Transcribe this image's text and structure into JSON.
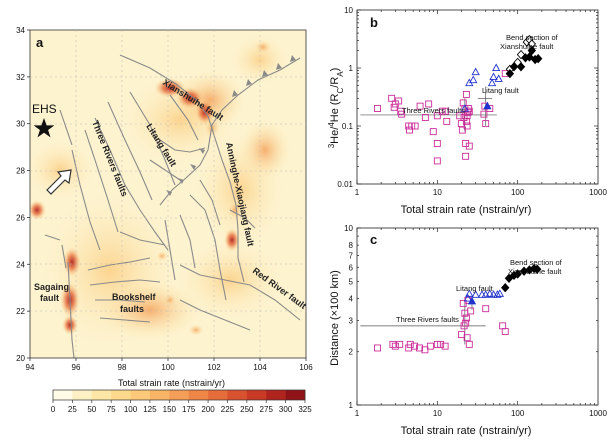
{
  "panel_a": {
    "label": "a",
    "xlabel": "Total strain rate (nstrain/yr)",
    "xticks": [
      "94",
      "96",
      "98",
      "100",
      "102",
      "104",
      "106"
    ],
    "yticks": [
      "20",
      "22",
      "24",
      "26",
      "28",
      "30",
      "32",
      "34"
    ],
    "xlim": [
      94,
      106
    ],
    "ylim": [
      20,
      34
    ],
    "ehs_label": "EHS",
    "colorbar_ticks": [
      "0",
      "25",
      "50",
      "75",
      "100",
      "125",
      "150",
      "175",
      "200",
      "225",
      "250",
      "275",
      "300",
      "325"
    ],
    "colorbar_colors": [
      "#fffbe6",
      "#fdf0c4",
      "#fde6a6",
      "#fcd98c",
      "#fbc979",
      "#f8b567",
      "#f49f57",
      "#ee8648",
      "#e56c3b",
      "#d9522f",
      "#c83a26",
      "#b0241e",
      "#8f1318"
    ],
    "labels": {
      "xianshuihe": "Xianshuihe fault",
      "litang": "Litang fault",
      "three_rivers": "Three Rivers faults",
      "anninghe": "Anninghe-Xiaojiang fault",
      "sagaing": "Sagaing fault",
      "sagaing_line1": "Sagaing",
      "sagaing_line2": "fault",
      "bookshelf_line1": "Bookshelf",
      "bookshelf_line2": "faults",
      "red_river": "Red River fault"
    }
  },
  "chart_data": [
    {
      "type": "scatter",
      "panel": "b",
      "xlabel": "Total strain rate (nstrain/yr)",
      "ylabel": "³He/⁴He (R_C/R_A)",
      "xscale": "log",
      "yscale": "log",
      "xlim": [
        1,
        1000
      ],
      "ylim": [
        0.01,
        10
      ],
      "xtick_labels": [
        "1",
        "10",
        "100",
        "1000"
      ],
      "ytick_labels": [
        "0.01",
        "0.1",
        "1",
        "10"
      ],
      "series": [
        {
          "marker": "open-square",
          "color": "#cc2e9a",
          "x": [
            1.8,
            2.7,
            2.9,
            3.0,
            3.3,
            3.5,
            3.6,
            4.4,
            4.5,
            4.8,
            5.3,
            6.1,
            7.1,
            7.8,
            8.9,
            10.0,
            10.0,
            10.0,
            11.5,
            12.7,
            13.1,
            19.0,
            19.9,
            20.5,
            21.0,
            21.5,
            22.0,
            22.5,
            22.5,
            23.0,
            23.0,
            23.5,
            23.5,
            24.0,
            24.5,
            25.0,
            25.0,
            38.0,
            39.0,
            40.0,
            45.0,
            70.0
          ],
          "y": [
            0.2,
            0.3,
            0.21,
            0.24,
            0.27,
            0.18,
            0.16,
            0.1,
            0.085,
            0.1,
            0.1,
            0.22,
            0.14,
            0.24,
            0.08,
            0.15,
            0.025,
            0.05,
            0.18,
            0.18,
            0.12,
            0.15,
            0.11,
            0.085,
            0.25,
            0.14,
            0.2,
            0.05,
            0.03,
            0.35,
            0.12,
            0.15,
            0.1,
            0.17,
            0.2,
            0.18,
            0.045,
            0.16,
            0.22,
            0.11,
            0.2,
            0.8
          ]
        },
        {
          "marker": "open-triangle",
          "color": "#2233cc",
          "x": [
            22,
            25,
            28,
            30,
            48,
            50,
            54,
            58
          ],
          "y": [
            0.2,
            0.55,
            0.62,
            0.85,
            0.55,
            0.7,
            1.0,
            0.65
          ]
        },
        {
          "marker": "filled-triangle",
          "color": "#2233cc",
          "x": [
            42
          ],
          "y": [
            0.22
          ]
        },
        {
          "marker": "open-diamond",
          "color": "#000000",
          "x": [
            80,
            100,
            110,
            130,
            140,
            150
          ],
          "y": [
            0.95,
            1.25,
            1.7,
            2.8,
            3.1,
            2.6
          ]
        },
        {
          "marker": "filled-diamond",
          "color": "#000000",
          "x": [
            80,
            90,
            110,
            125,
            140,
            150,
            165,
            180
          ],
          "y": [
            0.8,
            1.05,
            1.05,
            1.5,
            1.55,
            2.0,
            1.4,
            1.45
          ]
        }
      ],
      "annotations": [
        "Bend section of Xianshuihe fault",
        "Litang fault",
        "Three Rivers faults"
      ]
    },
    {
      "type": "scatter",
      "panel": "c",
      "xlabel": "Total strain rate (nstrain/yr)",
      "ylabel": "Distance (×100 km)",
      "xscale": "log",
      "yscale": "log",
      "xlim": [
        1,
        1000
      ],
      "ylim": [
        1,
        10
      ],
      "xtick_labels": [
        "1",
        "10",
        "100",
        "1000"
      ],
      "ytick_labels": [
        "1",
        "2",
        "3",
        "4",
        "5",
        "6",
        "7",
        "8",
        "10"
      ],
      "series": [
        {
          "marker": "open-square",
          "color": "#cc2e9a",
          "x": [
            1.8,
            2.8,
            3.0,
            3.4,
            4.4,
            4.6,
            5.2,
            6.0,
            7.0,
            8.2,
            10.0,
            11.0,
            12.5,
            20.0,
            21.0,
            21.5,
            22.0,
            22.5,
            23.0,
            23.5,
            24.0,
            25.0,
            26.0,
            40.0,
            65.0,
            70.0
          ],
          "y": [
            2.1,
            2.2,
            2.15,
            2.2,
            2.1,
            2.2,
            2.15,
            2.1,
            2.05,
            2.15,
            2.2,
            2.2,
            2.15,
            2.5,
            3.75,
            2.8,
            3.3,
            2.9,
            3.1,
            2.4,
            3.9,
            2.2,
            3.4,
            3.5,
            2.8,
            2.6
          ]
        },
        {
          "marker": "open-triangle",
          "color": "#2233cc",
          "x": [
            24,
            25,
            30,
            36,
            40,
            45,
            50,
            56,
            60
          ],
          "y": [
            4.0,
            4.25,
            4.2,
            4.2,
            4.2,
            4.25,
            4.2,
            4.2,
            4.25
          ]
        },
        {
          "marker": "filled-triangle",
          "color": "#2233cc",
          "x": [
            27
          ],
          "y": [
            3.85
          ]
        },
        {
          "marker": "filled-diamond",
          "color": "#000000",
          "x": [
            70,
            78,
            90,
            100,
            120,
            140,
            160,
            175
          ],
          "y": [
            4.6,
            5.2,
            5.4,
            5.5,
            5.7,
            5.8,
            5.9,
            5.85
          ]
        }
      ],
      "annotations": [
        "Bend section of Xianshuihe fault",
        "Litang fault",
        "Three Rivers faults"
      ]
    }
  ],
  "panel_b": {
    "label": "b",
    "ylabel_main": "He/He (R",
    "ylabel_sup1": "3",
    "ylabel_sup2": "4",
    "ylabel_c": "C",
    "ylabel_a": "A",
    "ylabel_end": ")",
    "ylabel_sep": "/R",
    "xlabel": "Total strain rate (nstrain/yr)",
    "ann_bend_1": "Bend section of",
    "ann_bend_2": "Xianshuihe fault",
    "ann_litang": "Litang fault",
    "ann_three": "Three Rivers faults"
  },
  "panel_c": {
    "label": "c",
    "ylabel": "Distance (×100 km)",
    "xlabel": "Total strain rate (nstrain/yr)",
    "ann_bend_1": "Bend section of",
    "ann_bend_2": "Xianshuihe fault",
    "ann_litang": "Litang fault",
    "ann_three": "Three Rivers faults"
  }
}
